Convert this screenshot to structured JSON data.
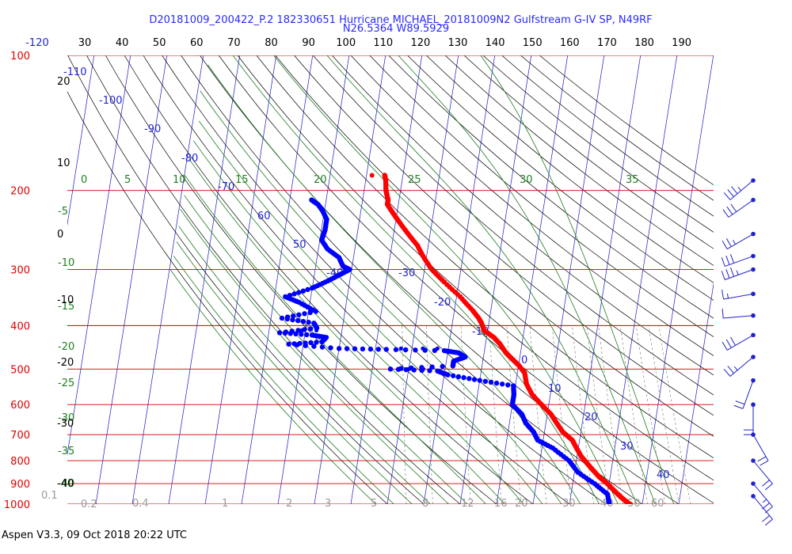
{
  "header": {
    "title_line1": "D20181009_200422_P.2 182330651 Hurricane MICHAEL_20181009N2 Gulfstream G-IV SP, N49RF",
    "title_line2": "N26.5364 W89.5929"
  },
  "footer": {
    "text": "Aspen V3.3, 09 Oct 2018  20:22 UTC"
  },
  "colors": {
    "temperature": "#ff0000",
    "dewpoint": "#0000ff",
    "isobar": "#cc0000",
    "isotherm": "#1a1acc",
    "dry_adiabat": "#000000",
    "moist_adiabat": "#1f7a1f",
    "mixing_ratio": "#777777",
    "wind": "#2222cc"
  },
  "chart_data": {
    "type": "scatter",
    "chart_kind": "skew-T log-P diagram",
    "y_axis": {
      "quantity": "pressure (hPa)",
      "scale": "log",
      "range": [
        1000,
        100
      ],
      "ticks": [
        "100",
        "200",
        "300",
        "400",
        "500",
        "600",
        "700",
        "800",
        "900",
        "1000"
      ]
    },
    "top_axis_labels": [
      "-120",
      "30",
      "40",
      "50",
      "60",
      "70",
      "80",
      "90",
      "100",
      "110",
      "120",
      "130",
      "140",
      "150",
      "160",
      "170",
      "180",
      "190"
    ],
    "isotherm_labels": [
      {
        "p": 137,
        "text": "-110"
      },
      {
        "p": 154,
        "text": "-100"
      },
      {
        "p": 175,
        "text": "-90"
      },
      {
        "p": 195,
        "text": "-80"
      },
      {
        "p": 218,
        "text": "-70"
      },
      {
        "p": 238,
        "text": "60"
      },
      {
        "p": 285,
        "text": "50"
      },
      {
        "p": 320,
        "text": "-40"
      },
      {
        "p": 320,
        "text": "-30"
      },
      {
        "p": 382,
        "text": "-20"
      },
      {
        "p": 442,
        "text": "-10"
      },
      {
        "p": 540,
        "text": "0"
      },
      {
        "p": 625,
        "text": "10"
      },
      {
        "p": 730,
        "text": "20"
      },
      {
        "p": 850,
        "text": "30"
      },
      {
        "p": 930,
        "text": "40"
      }
    ],
    "moist_adiabat_top_labels": [
      "0",
      "5",
      "10",
      "15",
      "20",
      "25",
      "30",
      "35"
    ],
    "left_theta_labels": [
      "-5",
      "-10",
      "-15",
      "-20",
      "-25",
      "-30",
      "-35",
      "-40"
    ],
    "left_black_labels": [
      "20",
      "10",
      "0",
      "-10",
      "-20",
      "-30",
      "-40"
    ],
    "mixing_ratio_labels": [
      "0.1",
      "0.2",
      "0.4",
      "1",
      "2",
      "3",
      "5",
      "8",
      "12",
      "16",
      "20",
      "30",
      "40",
      "50",
      "60"
    ],
    "temperature": [
      {
        "p": 185,
        "t": -55.0
      },
      {
        "p": 190,
        "t": -54.5
      },
      {
        "p": 200,
        "t": -54.0
      },
      {
        "p": 205,
        "t": -53.5
      },
      {
        "p": 210,
        "t": -53.0
      },
      {
        "p": 215,
        "t": -53.0
      },
      {
        "p": 225,
        "t": -51.0
      },
      {
        "p": 235,
        "t": -49.0
      },
      {
        "p": 250,
        "t": -46.0
      },
      {
        "p": 265,
        "t": -43.0
      },
      {
        "p": 280,
        "t": -41.0
      },
      {
        "p": 300,
        "t": -38.0
      },
      {
        "p": 320,
        "t": -34.0
      },
      {
        "p": 345,
        "t": -29.0
      },
      {
        "p": 370,
        "t": -25.0
      },
      {
        "p": 385,
        "t": -23.0
      },
      {
        "p": 395,
        "t": -22.0
      },
      {
        "p": 410,
        "t": -21.0
      },
      {
        "p": 425,
        "t": -18.0
      },
      {
        "p": 440,
        "t": -16.0
      },
      {
        "p": 460,
        "t": -14.0
      },
      {
        "p": 475,
        "t": -12.0
      },
      {
        "p": 490,
        "t": -10.0
      },
      {
        "p": 510,
        "t": -8.0
      },
      {
        "p": 540,
        "t": -7.0
      },
      {
        "p": 570,
        "t": -5.0
      },
      {
        "p": 600,
        "t": -2.0
      },
      {
        "p": 630,
        "t": 1.0
      },
      {
        "p": 660,
        "t": 3.0
      },
      {
        "p": 690,
        "t": 5.0
      },
      {
        "p": 720,
        "t": 8.0
      },
      {
        "p": 750,
        "t": 9.5
      },
      {
        "p": 780,
        "t": 11.0
      },
      {
        "p": 810,
        "t": 13.0
      },
      {
        "p": 840,
        "t": 15.0
      },
      {
        "p": 870,
        "t": 17.0
      },
      {
        "p": 900,
        "t": 19.5
      },
      {
        "p": 930,
        "t": 21.5
      },
      {
        "p": 960,
        "t": 23.5
      },
      {
        "p": 980,
        "t": 25.0
      },
      {
        "p": 1000,
        "t": 26.5
      },
      {
        "p": 1012,
        "t": 27.5
      }
    ],
    "temperature_outlier": {
      "p": 185,
      "t": -58.5
    },
    "dewpoint": [
      {
        "p": 210,
        "t": -74.0
      },
      {
        "p": 215,
        "t": -72.0
      },
      {
        "p": 222,
        "t": -70.5
      },
      {
        "p": 232,
        "t": -69.0
      },
      {
        "p": 245,
        "t": -69.0
      },
      {
        "p": 258,
        "t": -69.5
      },
      {
        "p": 270,
        "t": -67.5
      },
      {
        "p": 282,
        "t": -64.0
      },
      {
        "p": 295,
        "t": -62.5
      },
      {
        "p": 300,
        "t": -60.5
      },
      {
        "p": 308,
        "t": -63.0
      },
      {
        "p": 318,
        "t": -66.0
      },
      {
        "p": 330,
        "t": -70.0
      },
      {
        "p": 345,
        "t": -77.0
      },
      {
        "p": 355,
        "t": -73.0
      },
      {
        "p": 372,
        "t": -68.0
      },
      {
        "p": 385,
        "t": -77.0
      },
      {
        "p": 395,
        "t": -68.0
      },
      {
        "p": 405,
        "t": -67.0
      },
      {
        "p": 415,
        "t": -77.0
      },
      {
        "p": 420,
        "t": -68.0
      },
      {
        "p": 425,
        "t": -64.0
      },
      {
        "p": 435,
        "t": -65.0
      },
      {
        "p": 440,
        "t": -74.0
      },
      {
        "p": 450,
        "t": -60.0
      },
      {
        "p": 452,
        "t": -47.0
      },
      {
        "p": 455,
        "t": -31.0
      },
      {
        "p": 460,
        "t": -27.0
      },
      {
        "p": 470,
        "t": -25.0
      },
      {
        "p": 480,
        "t": -28.0
      },
      {
        "p": 492,
        "t": -28.0
      },
      {
        "p": 500,
        "t": -45.0
      },
      {
        "p": 505,
        "t": -32.0
      },
      {
        "p": 515,
        "t": -29.0
      },
      {
        "p": 530,
        "t": -20.0
      },
      {
        "p": 545,
        "t": -10.5
      },
      {
        "p": 570,
        "t": -10.0
      },
      {
        "p": 600,
        "t": -10.0
      },
      {
        "p": 630,
        "t": -7.0
      },
      {
        "p": 660,
        "t": -5.5
      },
      {
        "p": 690,
        "t": -3.0
      },
      {
        "p": 720,
        "t": -1.5
      },
      {
        "p": 750,
        "t": 3.0
      },
      {
        "p": 800,
        "t": 8.0
      },
      {
        "p": 850,
        "t": 11.0
      },
      {
        "p": 900,
        "t": 16.0
      },
      {
        "p": 950,
        "t": 20.0
      },
      {
        "p": 1000,
        "t": 21.0
      }
    ],
    "dewpoint_scattered_points": [
      {
        "p": 450,
        "t": -43.0
      },
      {
        "p": 450,
        "t": -37.0
      },
      {
        "p": 450,
        "t": -33.0
      },
      {
        "p": 410,
        "t": -71.0
      },
      {
        "p": 410,
        "t": -67.0
      },
      {
        "p": 500,
        "t": -40.0
      },
      {
        "p": 500,
        "t": -36.0
      }
    ],
    "wind_barbs": [
      {
        "p": 190,
        "dir": 230,
        "kt": 35
      },
      {
        "p": 210,
        "dir": 235,
        "kt": 30
      },
      {
        "p": 250,
        "dir": 240,
        "kt": 25
      },
      {
        "p": 280,
        "dir": 250,
        "kt": 30
      },
      {
        "p": 300,
        "dir": 250,
        "kt": 35
      },
      {
        "p": 340,
        "dir": 260,
        "kt": 15
      },
      {
        "p": 380,
        "dir": 265,
        "kt": 10
      },
      {
        "p": 420,
        "dir": 240,
        "kt": 30
      },
      {
        "p": 470,
        "dir": 230,
        "kt": 25
      },
      {
        "p": 530,
        "dir": 200,
        "kt": 20
      },
      {
        "p": 600,
        "dir": 180,
        "kt": 20
      },
      {
        "p": 700,
        "dir": 150,
        "kt": 20
      },
      {
        "p": 800,
        "dir": 140,
        "kt": 20
      },
      {
        "p": 900,
        "dir": 140,
        "kt": 25
      },
      {
        "p": 960,
        "dir": 140,
        "kt": 20
      }
    ]
  }
}
